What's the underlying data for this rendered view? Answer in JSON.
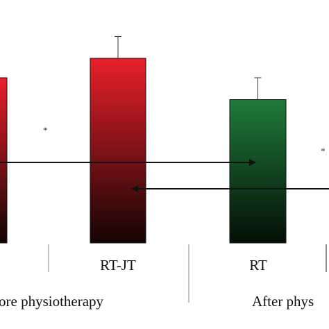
{
  "chart_data": {
    "type": "bar",
    "title": "",
    "xlabel": "",
    "ylabel": "",
    "ylim": [
      0,
      100
    ],
    "categories": [
      "",
      "RT-JT",
      "RT",
      ""
    ],
    "groups": [
      "ore physiotherapy",
      "After phys"
    ],
    "bars": [
      {
        "category": "",
        "group": "ore physiotherapy",
        "value": 68,
        "error": null,
        "color_top": "#e8202a",
        "color_bottom": "#120404"
      },
      {
        "category": "RT-JT",
        "group": "ore physiotherapy",
        "value": 76,
        "error": 9,
        "color_top": "#e8202a",
        "color_bottom": "#140404"
      },
      {
        "category": "RT",
        "group": "After phys",
        "value": 59,
        "error": 9,
        "color_top": "#1f7a3a",
        "color_bottom": "#040f06"
      }
    ],
    "annotations": [
      "*",
      "*"
    ]
  }
}
